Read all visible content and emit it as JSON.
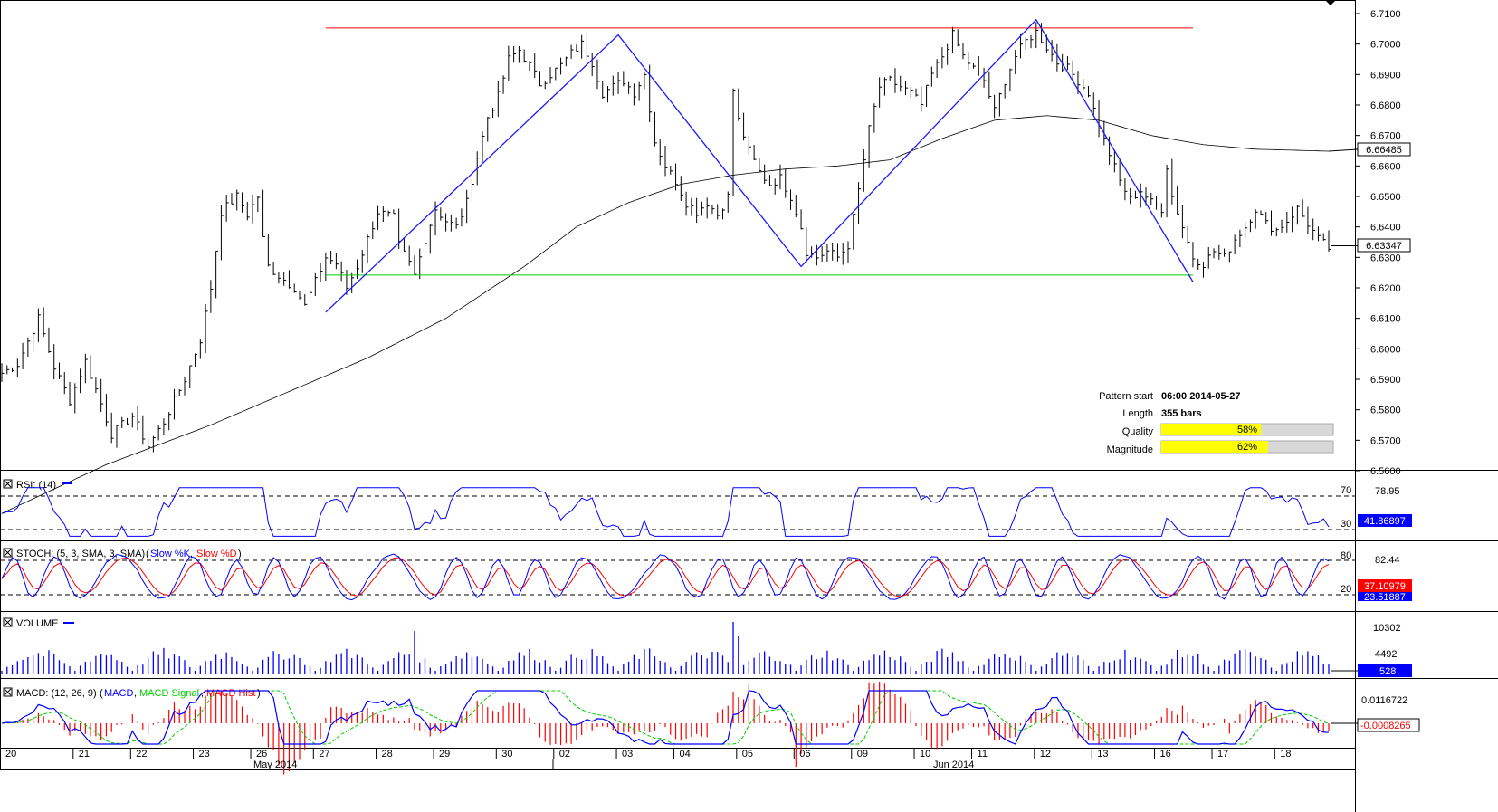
{
  "colors": {
    "frame": "#000000",
    "price_bars": "#000000",
    "sma": "#000000",
    "pattern": "#1a1aff",
    "resistance": "#ff0000",
    "support": "#00cc00",
    "rsi": "#0000ff",
    "stoch_k": "#0000ff",
    "stoch_d": "#ff0000",
    "volume": "#0000ff",
    "macd": "#0000ff",
    "macd_signal": "#00cc00",
    "macd_hist": "#ff0000",
    "quality_fill": "#ffff00",
    "current_box_bg": "#0000ff"
  },
  "pattern_info": {
    "start_label": "Pattern start",
    "start_value": "06:00 2014-05-27",
    "length_label": "Length",
    "length_value": "355 bars",
    "quality_label": "Quality",
    "quality_value": "58%",
    "quality_fraction": 0.58,
    "magnitude_label": "Magnitude",
    "magnitude_value": "62%",
    "magnitude_fraction": 0.62
  },
  "panels": {
    "rsi": {
      "title": "RSI: (14)",
      "level_high": "70",
      "level_low": "30",
      "right_top": "78.95",
      "current": "41.86897"
    },
    "stoch": {
      "title": "STOCH: (5, 3, SMA, 3, SMA)",
      "k_legend": "Slow %K",
      "d_legend": "Slow %D",
      "level_high": "80",
      "level_low": "20",
      "right_top": "82.44",
      "current_d": "37.10979",
      "current_k": "23.51887"
    },
    "volume": {
      "title": "VOLUME",
      "ticks": [
        "10302",
        "4492"
      ],
      "current": "528"
    },
    "macd": {
      "title": "MACD: (12, 26, 9)",
      "l1": "MACD",
      "l2": "MACD Signal",
      "l3": "MACD Hist",
      "ticks": [
        "0.0116722"
      ],
      "current": "-0.0008265"
    }
  },
  "chart_data": {
    "type": "bar",
    "title": "",
    "subtitle": "",
    "price_axis": {
      "min": 6.56,
      "max": 6.71,
      "ticks": [
        "6.7100",
        "6.7000",
        "6.6900",
        "6.6800",
        "6.6700",
        "6.6600",
        "6.6500",
        "6.6400",
        "6.6300",
        "6.6200",
        "6.6100",
        "6.6000",
        "6.5900",
        "6.5800",
        "6.5700",
        "6.5600"
      ],
      "tick_values": [
        6.71,
        6.7,
        6.69,
        6.68,
        6.67,
        6.66,
        6.65,
        6.64,
        6.63,
        6.62,
        6.61,
        6.6,
        6.59,
        6.58,
        6.57,
        6.56
      ],
      "sma_value": "6.66485",
      "current_price": "6.63347"
    },
    "date_axis": {
      "days": [
        "20",
        "21",
        "22",
        "23",
        "26",
        "27",
        "28",
        "29",
        "30",
        "02",
        "03",
        "04",
        "05",
        "06",
        "09",
        "10",
        "11",
        "12",
        "13",
        "16",
        "17",
        "18"
      ],
      "months": [
        "May 2014",
        "Jun 2014"
      ]
    },
    "price_path": [
      [
        0,
        6.592
      ],
      [
        3,
        6.595
      ],
      [
        7,
        6.61
      ],
      [
        10,
        6.594
      ],
      [
        13,
        6.583
      ],
      [
        16,
        6.596
      ],
      [
        19,
        6.582
      ],
      [
        21,
        6.572
      ],
      [
        25,
        6.578
      ],
      [
        28,
        6.568
      ],
      [
        31,
        6.576
      ],
      [
        35,
        6.59
      ],
      [
        38,
        6.603
      ],
      [
        40,
        6.62
      ],
      [
        42,
        6.645
      ],
      [
        45,
        6.65
      ],
      [
        47,
        6.644
      ],
      [
        49,
        6.65
      ],
      [
        50,
        6.636
      ],
      [
        51,
        6.627
      ],
      [
        53,
        6.624
      ],
      [
        56,
        6.62
      ],
      [
        58,
        6.614
      ],
      [
        60,
        6.622
      ],
      [
        62,
        6.63
      ],
      [
        64,
        6.628
      ],
      [
        66,
        6.62
      ],
      [
        68,
        6.627
      ],
      [
        70,
        6.636
      ],
      [
        72,
        6.645
      ],
      [
        75,
        6.643
      ],
      [
        76,
        6.634
      ],
      [
        78,
        6.628
      ],
      [
        79,
        6.624
      ],
      [
        81,
        6.636
      ],
      [
        83,
        6.646
      ],
      [
        85,
        6.642
      ],
      [
        87,
        6.64
      ],
      [
        89,
        6.648
      ],
      [
        91,
        6.663
      ],
      [
        93,
        6.676
      ],
      [
        95,
        6.683
      ],
      [
        97,
        6.695
      ],
      [
        99,
        6.698
      ],
      [
        101,
        6.693
      ],
      [
        103,
        6.687
      ],
      [
        105,
        6.69
      ],
      [
        107,
        6.693
      ],
      [
        109,
        6.697
      ],
      [
        111,
        6.7
      ],
      [
        113,
        6.694
      ],
      [
        115,
        6.684
      ],
      [
        117,
        6.686
      ],
      [
        119,
        6.688
      ],
      [
        121,
        6.684
      ],
      [
        123,
        6.69
      ],
      [
        125,
        6.668
      ],
      [
        127,
        6.66
      ],
      [
        129,
        6.655
      ],
      [
        131,
        6.648
      ],
      [
        133,
        6.645
      ],
      [
        135,
        6.648
      ],
      [
        137,
        6.644
      ],
      [
        139,
        6.65
      ],
      [
        140,
        6.685
      ],
      [
        141,
        6.675
      ],
      [
        143,
        6.665
      ],
      [
        145,
        6.658
      ],
      [
        147,
        6.654
      ],
      [
        149,
        6.656
      ],
      [
        151,
        6.65
      ],
      [
        153,
        6.64
      ],
      [
        154,
        6.632
      ],
      [
        156,
        6.63
      ],
      [
        158,
        6.632
      ],
      [
        160,
        6.63
      ],
      [
        162,
        6.634
      ],
      [
        164,
        6.652
      ],
      [
        166,
        6.672
      ],
      [
        168,
        6.686
      ],
      [
        170,
        6.688
      ],
      [
        172,
        6.686
      ],
      [
        174,
        6.684
      ],
      [
        176,
        6.68
      ],
      [
        178,
        6.69
      ],
      [
        180,
        6.696
      ],
      [
        182,
        6.703
      ],
      [
        184,
        6.696
      ],
      [
        186,
        6.692
      ],
      [
        188,
        6.688
      ],
      [
        190,
        6.678
      ],
      [
        192,
        6.688
      ],
      [
        194,
        6.696
      ],
      [
        196,
        6.701
      ],
      [
        198,
        6.704
      ],
      [
        200,
        6.699
      ],
      [
        202,
        6.694
      ],
      [
        204,
        6.692
      ],
      [
        206,
        6.688
      ],
      [
        208,
        6.684
      ],
      [
        210,
        6.673
      ],
      [
        212,
        6.664
      ],
      [
        214,
        6.655
      ],
      [
        216,
        6.649
      ],
      [
        218,
        6.652
      ],
      [
        220,
        6.648
      ],
      [
        222,
        6.646
      ],
      [
        223,
        6.66
      ],
      [
        224,
        6.65
      ],
      [
        226,
        6.64
      ],
      [
        228,
        6.63
      ],
      [
        230,
        6.628
      ],
      [
        232,
        6.632
      ],
      [
        234,
        6.63
      ],
      [
        236,
        6.636
      ],
      [
        238,
        6.64
      ],
      [
        240,
        6.646
      ],
      [
        242,
        6.641
      ],
      [
        244,
        6.639
      ],
      [
        246,
        6.642
      ],
      [
        248,
        6.646
      ],
      [
        250,
        6.641
      ],
      [
        252,
        6.636
      ],
      [
        254,
        6.633
      ]
    ],
    "sma_path": [
      [
        0,
        6.546
      ],
      [
        20,
        6.562
      ],
      [
        40,
        6.575
      ],
      [
        55,
        6.586
      ],
      [
        70,
        6.597
      ],
      [
        85,
        6.61
      ],
      [
        100,
        6.627
      ],
      [
        110,
        6.64
      ],
      [
        120,
        6.648
      ],
      [
        130,
        6.654
      ],
      [
        140,
        6.657
      ],
      [
        150,
        6.659
      ],
      [
        160,
        6.66
      ],
      [
        170,
        6.662
      ],
      [
        180,
        6.669
      ],
      [
        190,
        6.675
      ],
      [
        200,
        6.6765
      ],
      [
        210,
        6.675
      ],
      [
        220,
        6.67
      ],
      [
        230,
        6.667
      ],
      [
        240,
        6.6655
      ],
      [
        254,
        6.66485
      ]
    ],
    "pattern_line": [
      [
        62,
        6.612
      ],
      [
        118,
        6.703
      ],
      [
        153,
        6.627
      ],
      [
        198,
        6.708
      ],
      [
        228,
        6.622
      ]
    ],
    "resistance": {
      "value": 6.7053,
      "from": 62,
      "to": 228
    },
    "support": {
      "value": 6.6242,
      "from": 62,
      "to": 228
    },
    "day_index_ranges": [
      [
        0,
        14
      ],
      [
        14,
        25
      ],
      [
        25,
        37
      ],
      [
        37,
        48
      ],
      [
        48,
        60
      ],
      [
        60,
        72
      ],
      [
        72,
        83
      ],
      [
        83,
        95
      ],
      [
        95,
        106
      ],
      [
        106,
        118
      ],
      [
        118,
        129
      ],
      [
        129,
        141
      ],
      [
        141,
        152
      ],
      [
        152,
        163
      ],
      [
        163,
        175
      ],
      [
        175,
        186
      ],
      [
        186,
        198
      ],
      [
        198,
        209
      ],
      [
        209,
        221
      ],
      [
        221,
        232
      ],
      [
        232,
        244
      ],
      [
        244,
        255
      ]
    ]
  }
}
